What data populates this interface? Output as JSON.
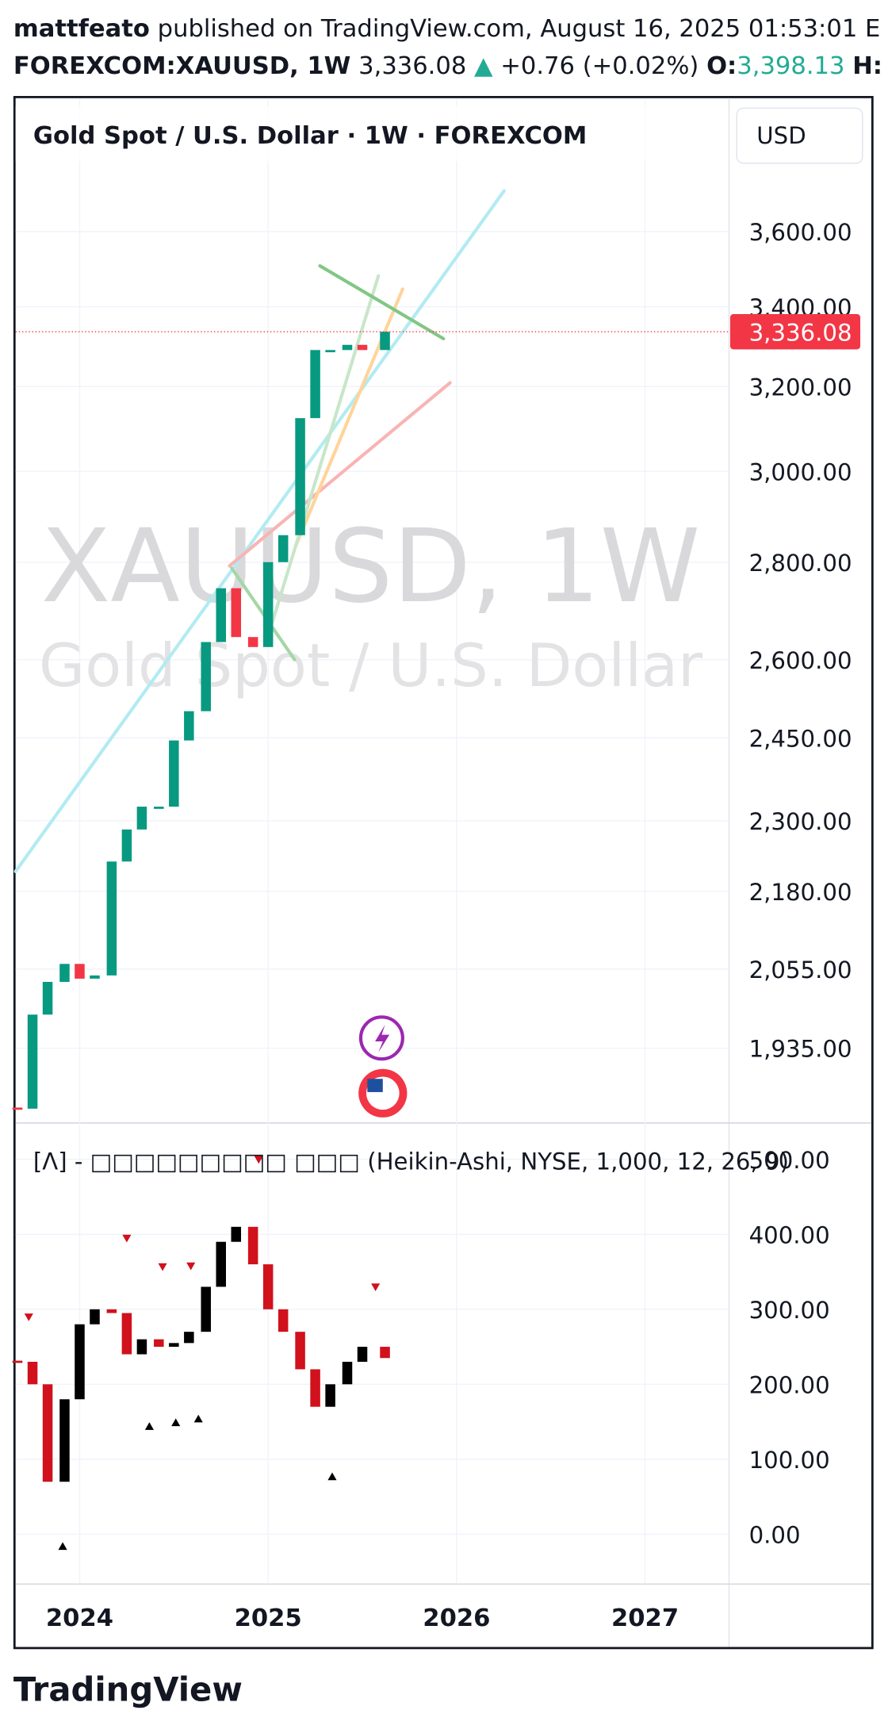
{
  "header": {
    "author": "mattfeato",
    "published": "published on TradingView.com, August 16, 2025 01:53:01 E",
    "symbol": "FOREXCOM:XAUUSD, 1W",
    "price": "3,336.08",
    "change": "+0.76 (+0.02%)",
    "open_label": "O:",
    "open_value": "3,398.13",
    "high_label": "H:"
  },
  "currency": "USD",
  "footer": {
    "logo": "TradingView"
  },
  "chart_data": [
    {
      "type": "candlestick",
      "title": "Gold Spot / U.S. Dollar · 1W · FOREXCOM",
      "watermark": "XAUUSD, 1W",
      "watermark_subtitle": "Gold Spot / U.S. Dollar",
      "x": [
        2023.67,
        2023.75,
        2023.83,
        2023.92,
        2024.0,
        2024.08,
        2024.17,
        2024.25,
        2024.33,
        2024.42,
        2024.5,
        2024.58,
        2024.67,
        2024.75,
        2024.83,
        2024.92,
        2025.0,
        2025.08,
        2025.17,
        2025.25,
        2025.33,
        2025.42,
        2025.5,
        2025.62
      ],
      "values": [
        1848,
        1985,
        2035,
        2063,
        2040,
        2045,
        2230,
        2285,
        2325,
        2325,
        2445,
        2500,
        2635,
        2745,
        2645,
        2625,
        2800,
        2858,
        3124,
        3290,
        3290,
        3303,
        3290,
        3336.08
      ],
      "up_color": "#089981",
      "down_color": "#f23645",
      "log_scale": true,
      "xlim": [
        2023.66,
        2027.44
      ],
      "ylim": [
        1828,
        3981
      ],
      "yticks": [
        {
          "value": 1935,
          "label": "1,935.00"
        },
        {
          "value": 2055,
          "label": "2,055.00"
        },
        {
          "value": 2180,
          "label": "2,180.00"
        },
        {
          "value": 2300,
          "label": "2,300.00"
        },
        {
          "value": 2450,
          "label": "2,450.00"
        },
        {
          "value": 2600,
          "label": "2,600.00"
        },
        {
          "value": 2800,
          "label": "2,800.00"
        },
        {
          "value": 3000,
          "label": "3,000.00"
        },
        {
          "value": 3200,
          "label": "3,200.00"
        },
        {
          "value": 3400,
          "label": "3,400.00"
        },
        {
          "value": 3600,
          "label": "3,600.00"
        }
      ],
      "last_price": {
        "value": 3336.08,
        "label": "3,336.08"
      },
      "grid": true
    },
    {
      "type": "candlestick",
      "title": "[Λ] - □□□□□□□□□ □□□ (Heikin-Ashi, NYSE, 1,000, 12, 26, 9)",
      "x": [
        2023.67,
        2023.75,
        2023.83,
        2023.92,
        2024.0,
        2024.08,
        2024.17,
        2024.25,
        2024.33,
        2024.42,
        2024.5,
        2024.58,
        2024.67,
        2024.75,
        2024.83,
        2024.92,
        2025.0,
        2025.08,
        2025.17,
        2025.25,
        2025.33,
        2025.42,
        2025.5,
        2025.62
      ],
      "values": [
        230,
        200,
        70,
        180,
        280,
        300,
        295,
        240,
        260,
        250,
        255,
        270,
        330,
        390,
        410,
        360,
        300,
        270,
        220,
        170,
        200,
        230,
        250,
        235
      ],
      "up_color": "#000000",
      "down_color": "#d1111c",
      "sell_signals": {
        "x": [
          2023.73,
          2024.25,
          2024.44,
          2024.59,
          2024.95,
          2025.57
        ],
        "values": [
          290,
          395,
          357,
          358,
          500,
          330
        ],
        "color": "#d1111c"
      },
      "buy_signals": {
        "x": [
          2023.91,
          2024.37,
          2024.51,
          2024.63,
          2025.34
        ],
        "values": [
          -15,
          145,
          150,
          155,
          78
        ],
        "color": "#000000"
      },
      "xlim": [
        2023.66,
        2027.44
      ],
      "ylim": [
        -65,
        548.5
      ],
      "yticks": [
        {
          "value": 0,
          "label": "0.00"
        },
        {
          "value": 100,
          "label": "100.00"
        },
        {
          "value": 200,
          "label": "200.00"
        },
        {
          "value": 300,
          "label": "300.00"
        },
        {
          "value": 400,
          "label": "400.00"
        },
        {
          "value": 500,
          "label": "500.00"
        }
      ],
      "xticks": [
        2024,
        2025,
        2026,
        2027
      ],
      "grid": true
    }
  ]
}
